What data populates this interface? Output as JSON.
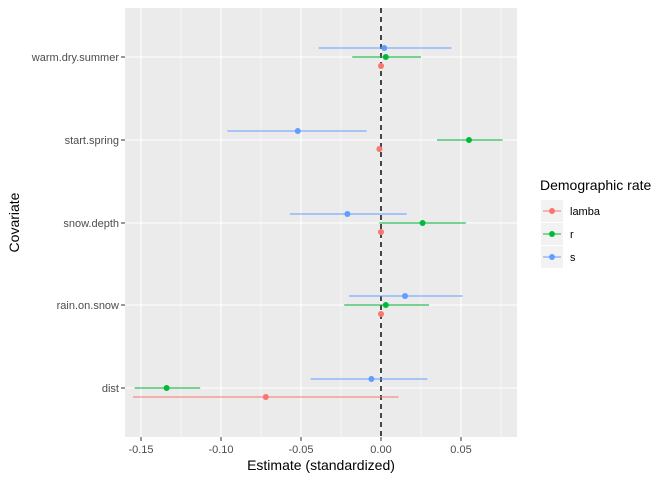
{
  "chart_data": {
    "type": "scatter",
    "subtype": "coefficient-plot-with-error-bars",
    "xlabel": "Estimate (standardized)",
    "ylabel": "Covariate",
    "xlim": [
      -0.16,
      0.085
    ],
    "x_ticks": [
      -0.15,
      -0.1,
      -0.05,
      0.0,
      0.05
    ],
    "x_tick_labels": [
      "-0.15",
      "-0.10",
      "-0.05",
      "0.00",
      "0.05"
    ],
    "categories": [
      "dist",
      "rain.on.snow",
      "snow.depth",
      "start.spring",
      "warm.dry.summer"
    ],
    "reference_line": {
      "x": 0,
      "style": "dashed"
    },
    "grid": true,
    "legend": {
      "title": "Demographic rate",
      "position": "right"
    },
    "series": [
      {
        "name": "lamba",
        "color": "#F8766D",
        "points": [
          {
            "category": "dist",
            "estimate": -0.072,
            "lower": -0.155,
            "upper": 0.011
          },
          {
            "category": "rain.on.snow",
            "estimate": 0.0,
            "lower": 0.0,
            "upper": 0.0
          },
          {
            "category": "snow.depth",
            "estimate": 0.0,
            "lower": 0.0,
            "upper": 0.0
          },
          {
            "category": "start.spring",
            "estimate": -0.001,
            "lower": -0.001,
            "upper": -0.001
          },
          {
            "category": "warm.dry.summer",
            "estimate": 0.0,
            "lower": 0.0,
            "upper": 0.0
          }
        ]
      },
      {
        "name": "r",
        "color": "#00BA38",
        "points": [
          {
            "category": "dist",
            "estimate": -0.134,
            "lower": -0.154,
            "upper": -0.113
          },
          {
            "category": "rain.on.snow",
            "estimate": 0.003,
            "lower": -0.023,
            "upper": 0.03
          },
          {
            "category": "snow.depth",
            "estimate": 0.026,
            "lower": -0.001,
            "upper": 0.053
          },
          {
            "category": "start.spring",
            "estimate": 0.055,
            "lower": 0.035,
            "upper": 0.076
          },
          {
            "category": "warm.dry.summer",
            "estimate": 0.003,
            "lower": -0.018,
            "upper": 0.025
          }
        ]
      },
      {
        "name": "s",
        "color": "#619CFF",
        "points": [
          {
            "category": "dist",
            "estimate": -0.006,
            "lower": -0.044,
            "upper": 0.029
          },
          {
            "category": "rain.on.snow",
            "estimate": 0.015,
            "lower": -0.02,
            "upper": 0.051
          },
          {
            "category": "snow.depth",
            "estimate": -0.021,
            "lower": -0.057,
            "upper": 0.016
          },
          {
            "category": "start.spring",
            "estimate": -0.052,
            "lower": -0.096,
            "upper": -0.009
          },
          {
            "category": "warm.dry.summer",
            "estimate": 0.002,
            "lower": -0.039,
            "upper": 0.044
          }
        ]
      }
    ]
  }
}
